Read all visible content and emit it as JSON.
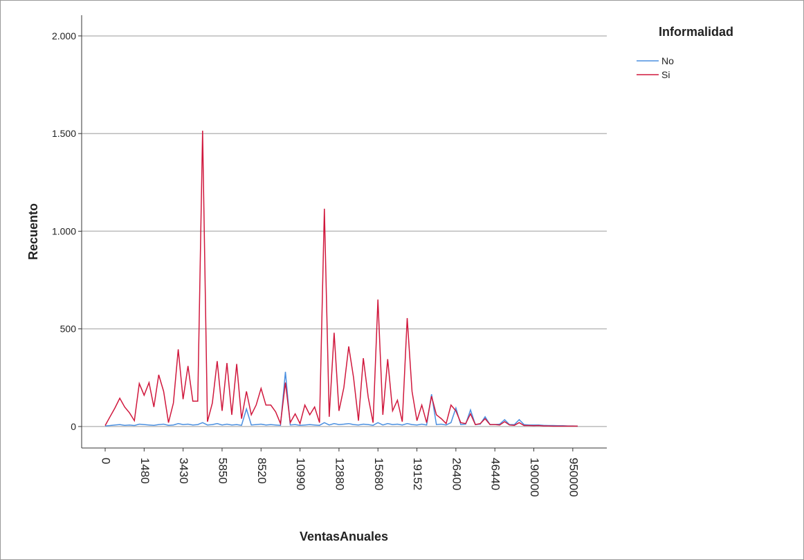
{
  "chart_data": {
    "type": "line",
    "x_label": "VentasAnuales",
    "y_label": "Recuento",
    "legend_title": "Informalidad",
    "legend": "right",
    "grid": true,
    "categories": [
      "0",
      null,
      null,
      null,
      null,
      null,
      null,
      null,
      "1480",
      null,
      null,
      null,
      null,
      null,
      null,
      null,
      "3430",
      null,
      null,
      null,
      null,
      null,
      null,
      null,
      "5850",
      null,
      null,
      null,
      null,
      null,
      null,
      null,
      "8520",
      null,
      null,
      null,
      null,
      null,
      null,
      null,
      "10990",
      null,
      null,
      null,
      null,
      null,
      null,
      null,
      "12880",
      null,
      null,
      null,
      null,
      null,
      null,
      null,
      "15680",
      null,
      null,
      null,
      null,
      null,
      null,
      null,
      "19152",
      null,
      null,
      null,
      null,
      null,
      null,
      null,
      "26400",
      null,
      null,
      null,
      null,
      null,
      null,
      null,
      "46440",
      null,
      null,
      null,
      null,
      null,
      null,
      null,
      "190000",
      null,
      null,
      null,
      null,
      null,
      null,
      null,
      "950000",
      null
    ],
    "series": [
      {
        "name": "No",
        "color": "#4a8fe0",
        "values": [
          3,
          5,
          8,
          10,
          6,
          8,
          5,
          12,
          10,
          8,
          6,
          10,
          12,
          6,
          8,
          15,
          10,
          12,
          8,
          10,
          20,
          8,
          10,
          15,
          8,
          12,
          8,
          10,
          6,
          90,
          8,
          10,
          12,
          8,
          10,
          8,
          6,
          280,
          8,
          10,
          6,
          8,
          10,
          8,
          6,
          20,
          8,
          15,
          10,
          12,
          15,
          10,
          8,
          12,
          10,
          6,
          20,
          8,
          15,
          10,
          12,
          8,
          15,
          10,
          8,
          12,
          8,
          165,
          10,
          12,
          8,
          20,
          95,
          10,
          12,
          85,
          10,
          12,
          50,
          10,
          10,
          12,
          35,
          10,
          10,
          35,
          10,
          8,
          8,
          8,
          6,
          5,
          5,
          4,
          4,
          3,
          3,
          2
        ]
      },
      {
        "name": "Si",
        "color": "#d0173c",
        "values": [
          5,
          50,
          95,
          145,
          100,
          70,
          30,
          220,
          160,
          225,
          100,
          265,
          180,
          20,
          120,
          395,
          140,
          310,
          130,
          130,
          1515,
          25,
          120,
          335,
          80,
          325,
          60,
          320,
          40,
          180,
          60,
          110,
          195,
          110,
          110,
          75,
          15,
          225,
          20,
          65,
          15,
          110,
          60,
          100,
          20,
          1115,
          50,
          480,
          80,
          200,
          410,
          250,
          30,
          350,
          150,
          20,
          650,
          60,
          345,
          80,
          135,
          25,
          555,
          180,
          30,
          110,
          20,
          155,
          60,
          40,
          15,
          110,
          80,
          20,
          15,
          65,
          10,
          15,
          40,
          10,
          10,
          8,
          25,
          8,
          6,
          20,
          5,
          5,
          4,
          5,
          3,
          3,
          2,
          2,
          2,
          2,
          2,
          2
        ]
      }
    ],
    "ylim": [
      -110,
      2106
    ],
    "yticks": [
      0,
      500,
      {
        "value": 1000,
        "label": "1.000"
      },
      {
        "value": 1500,
        "label": "1.500"
      },
      {
        "value": 2000,
        "label": "2.000"
      }
    ]
  }
}
